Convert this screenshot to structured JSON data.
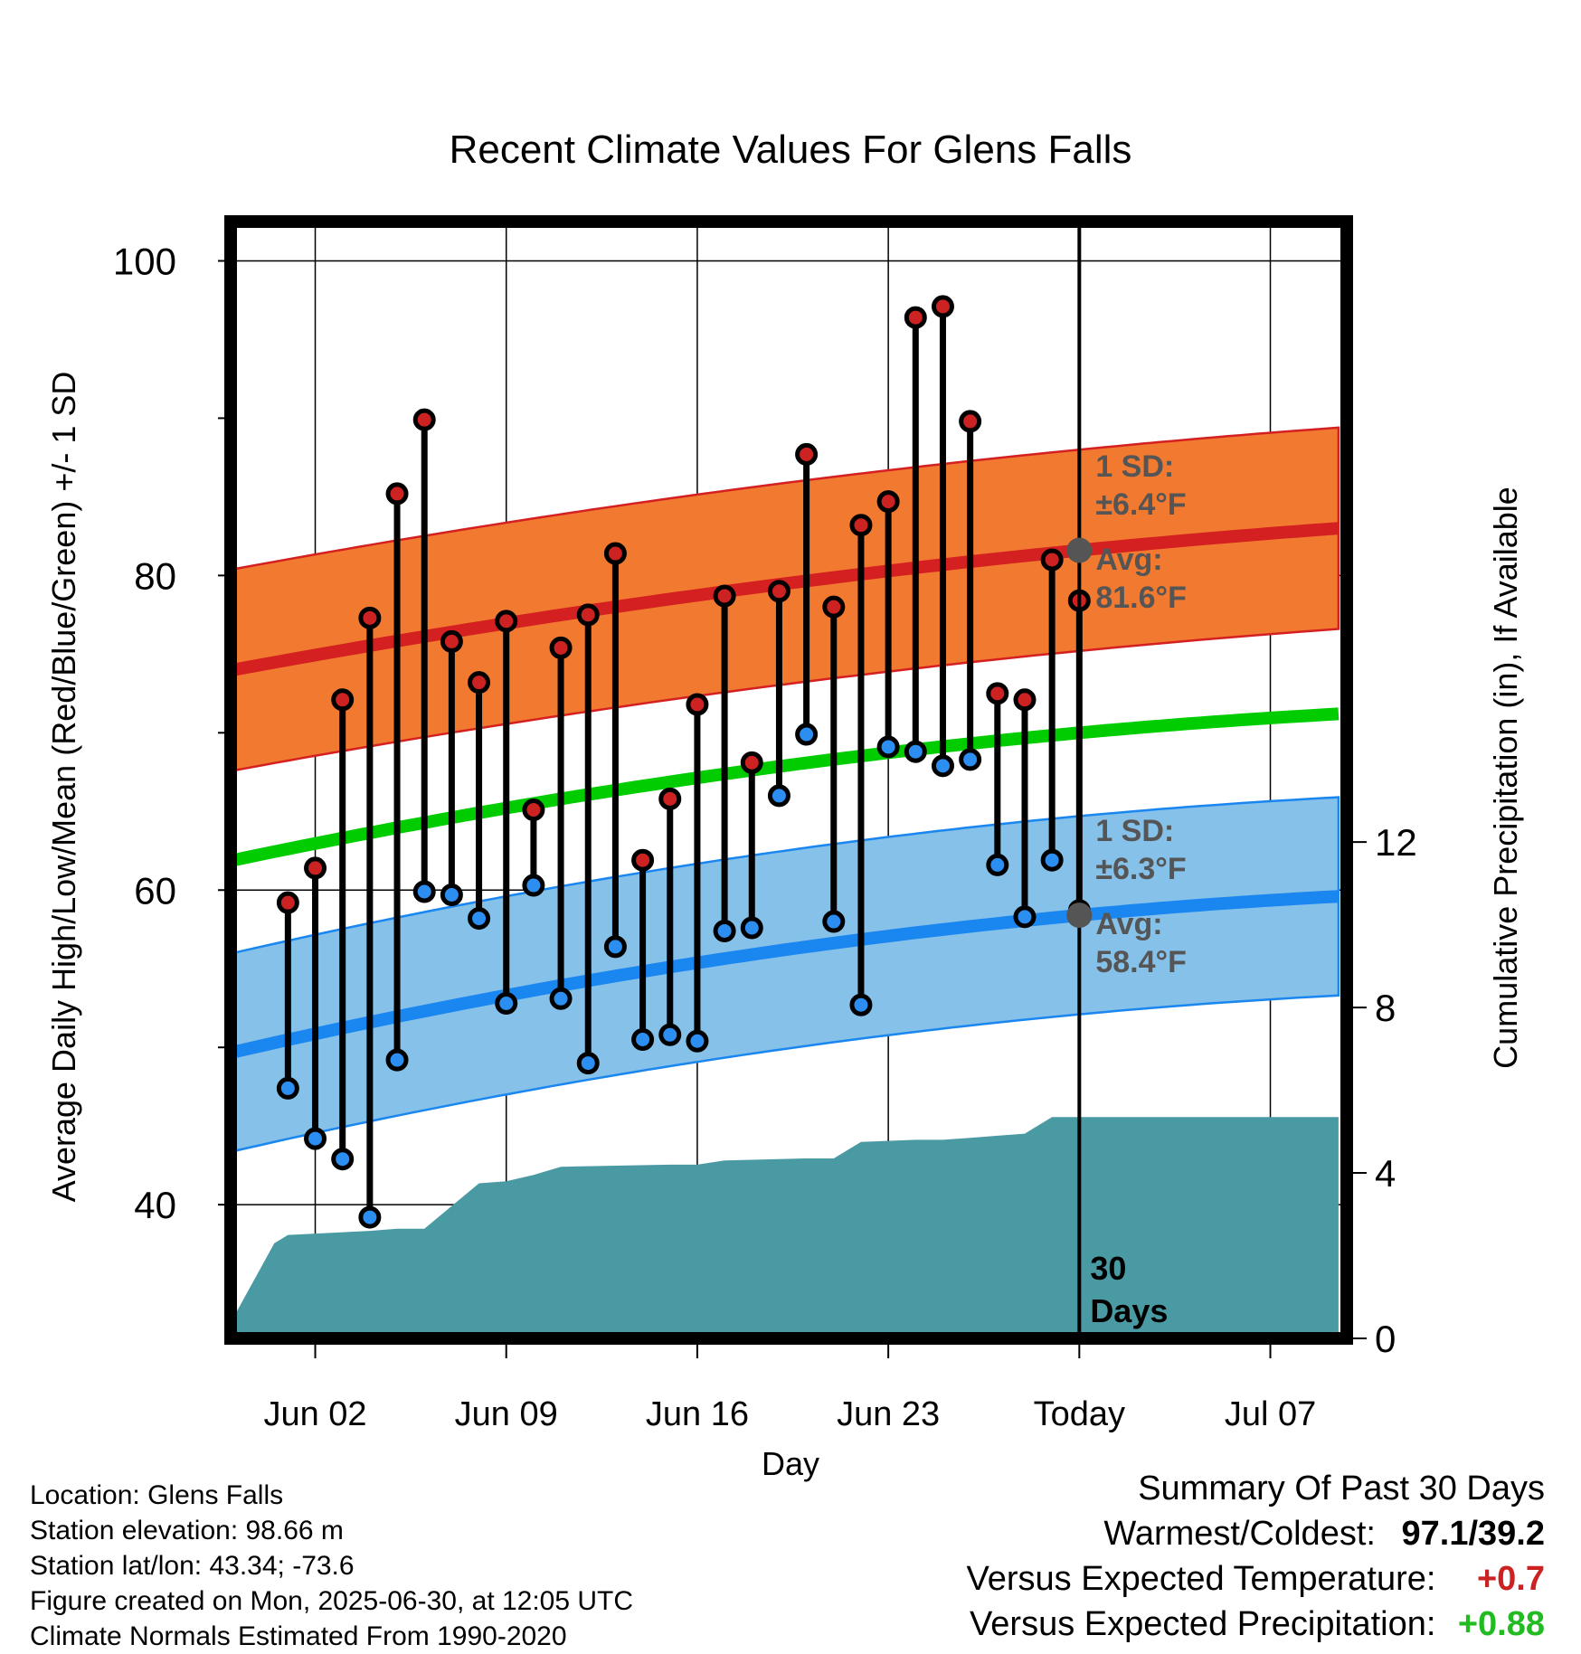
{
  "chart_data": {
    "type": "line",
    "title": "Recent Climate Values For Glens Falls",
    "xlabel": "Day",
    "ylabel": "Average Daily High/Low/Mean (Red/Blue/Green) +/- 1 SD",
    "y2label": "Cumulative Precipitation (in), If Available",
    "x_ticks": [
      "Jun 02",
      "Jun 09",
      "Jun 16",
      "Jun 23",
      "Today",
      "Jul 07"
    ],
    "x_tick_days": [
      2,
      9,
      16,
      23,
      30,
      37
    ],
    "xlim": [
      -1.1,
      39.8
    ],
    "ylim": [
      31.5,
      102.5
    ],
    "y_ticks": [
      40,
      60,
      80,
      100
    ],
    "y2lim": [
      0,
      27
    ],
    "y2_ticks": [
      0,
      4,
      8,
      12
    ],
    "grid": true,
    "today_day": 30,
    "today_label": "30 Days",
    "days": [
      1,
      2,
      3,
      4,
      5,
      6,
      7,
      8,
      9,
      10,
      11,
      12,
      13,
      14,
      15,
      16,
      17,
      18,
      19,
      20,
      21,
      22,
      23,
      24,
      25,
      26,
      27,
      28,
      29,
      30
    ],
    "highs": [
      59.2,
      61.4,
      72.1,
      77.3,
      85.2,
      89.9,
      75.8,
      73.2,
      77.1,
      65.1,
      75.4,
      77.5,
      81.4,
      61.9,
      65.8,
      71.8,
      78.7,
      68.1,
      79.0,
      87.7,
      78.0,
      83.2,
      84.7,
      96.4,
      97.1,
      89.8,
      72.5,
      72.1,
      81.0,
      78.4
    ],
    "lows": [
      47.4,
      44.2,
      42.9,
      39.2,
      49.2,
      59.9,
      59.7,
      58.2,
      52.8,
      60.3,
      53.1,
      49.0,
      56.4,
      50.5,
      50.8,
      50.4,
      57.4,
      57.6,
      66.0,
      69.9,
      58.0,
      52.7,
      69.1,
      68.8,
      67.9,
      68.3,
      61.6,
      58.3,
      61.9,
      58.7
    ],
    "normal_high": {
      "days": [
        -1,
        30,
        39.5
      ],
      "values": [
        74.0,
        81.6,
        83.0
      ]
    },
    "normal_high_sd": 6.4,
    "normal_low": {
      "days": [
        -1,
        30,
        39.5
      ],
      "values": [
        49.7,
        58.4,
        59.6
      ]
    },
    "normal_low_sd": 6.3,
    "normal_mean": {
      "days": [
        -1,
        30,
        39.5
      ],
      "values": [
        61.9,
        70.0,
        71.2
      ]
    },
    "precip": {
      "days": [
        -1,
        0.5,
        1,
        4,
        5,
        6,
        8,
        9,
        10,
        11,
        15,
        16,
        17,
        20,
        21,
        22,
        24,
        25,
        26,
        27,
        28,
        29,
        39.5
      ],
      "values": [
        0.5,
        2.3,
        2.5,
        2.6,
        2.65,
        2.65,
        3.75,
        3.8,
        3.95,
        4.15,
        4.2,
        4.2,
        4.3,
        4.35,
        4.35,
        4.75,
        4.8,
        4.8,
        4.85,
        4.9,
        4.95,
        5.35,
        5.35
      ]
    },
    "series": [
      {
        "color": "#cc2222",
        "values_key": "highs"
      },
      {
        "color": "#2b8ef0",
        "values_key": "lows"
      }
    ],
    "colors": {
      "high_band": "#f27a30",
      "high_line": "#d42020",
      "low_band": "#85c1e9",
      "low_line": "#1a86f0",
      "mean_line": "#00cc00",
      "precip_fill": "#4a9aa3",
      "annotation": "#555555"
    },
    "annotations": {
      "high_sd": [
        "1 SD:",
        "±6.4°F"
      ],
      "high_avg": [
        "Avg:",
        "81.6°F"
      ],
      "low_sd": [
        "1 SD:",
        "±6.3°F"
      ],
      "low_avg": [
        "Avg:",
        "58.4°F"
      ]
    }
  },
  "info": {
    "location": "Location: Glens Falls",
    "elevation": "Station elevation: 98.66 m",
    "latlon": "Station lat/lon: 43.34; -73.6",
    "created": "Figure created on Mon, 2025-06-30, at 12:05 UTC",
    "normals": "Climate Normals Estimated From 1990-2020"
  },
  "summary": {
    "title": "Summary Of Past 30 Days",
    "warm_cold_label": "Warmest/Coldest:",
    "warm_cold_value": "97.1/39.2",
    "temp_label": "Versus Expected Temperature:",
    "temp_value": "+0.7",
    "temp_color": "#cc2222",
    "precip_label": "Versus Expected Precipitation:",
    "precip_value": "+0.88",
    "precip_color": "#22bb22"
  }
}
